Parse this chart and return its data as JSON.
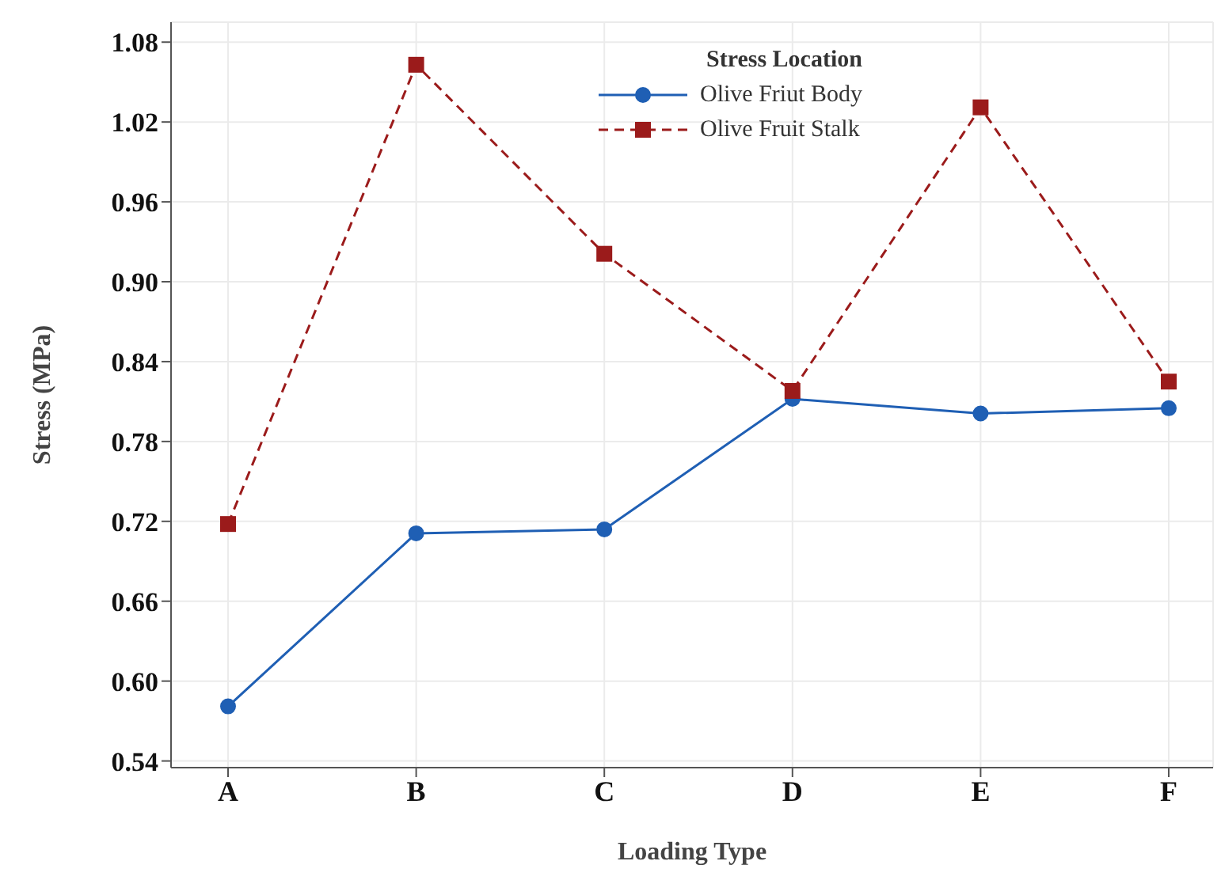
{
  "chart_data": {
    "type": "line",
    "xlabel": "Loading Type",
    "ylabel": "Stress (MPa)",
    "legend_title": "Stress Location",
    "legend": "top",
    "grid": true,
    "categories": [
      "A",
      "B",
      "C",
      "D",
      "E",
      "F"
    ],
    "ylim": [
      0.535,
      1.095
    ],
    "yticks": [
      0.54,
      {
        "value": 0.6,
        "label": "0.60"
      },
      0.66,
      0.72,
      0.78,
      0.84,
      {
        "value": 0.9,
        "label": "0.90"
      },
      0.96,
      1.02,
      1.08
    ],
    "series": [
      {
        "name": "Olive Friut Body",
        "color": "#1f5fb4",
        "marker": "circle",
        "line_style": "solid",
        "values": [
          0.581,
          0.711,
          0.714,
          0.812,
          0.801,
          0.805
        ]
      },
      {
        "name": "Olive Fruit Stalk",
        "color": "#9b1b1b",
        "marker": "square",
        "line_style": "dashed",
        "values": [
          0.718,
          1.063,
          0.921,
          0.818,
          1.031,
          0.825
        ]
      }
    ]
  }
}
